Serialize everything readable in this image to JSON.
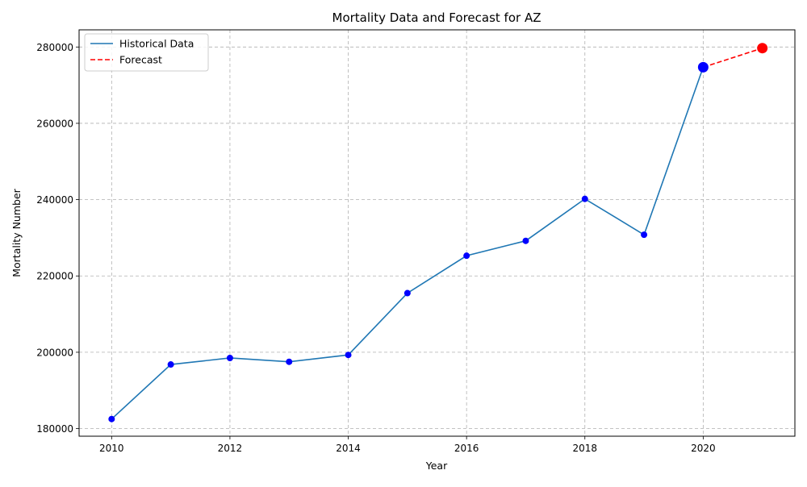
{
  "chart_data": {
    "type": "line",
    "title": "Mortality Data and Forecast for AZ",
    "xlabel": "Year",
    "ylabel": "Mortality Number",
    "xlim": [
      2009.45,
      2021.55
    ],
    "ylim": [
      178000,
      284500
    ],
    "x_ticks": [
      2010,
      2012,
      2014,
      2016,
      2018,
      2020
    ],
    "y_ticks": [
      180000,
      200000,
      220000,
      240000,
      260000,
      280000
    ],
    "grid": true,
    "legend_position": "top-left",
    "series": [
      {
        "name": "Historical Data",
        "style": "solid",
        "color": "#1f77b4",
        "marker_color": "#0000ff",
        "x": [
          2010,
          2011,
          2012,
          2013,
          2014,
          2015,
          2016,
          2017,
          2018,
          2019,
          2020
        ],
        "y": [
          182500,
          196800,
          198500,
          197500,
          199300,
          215500,
          225300,
          229200,
          240200,
          230800,
          274700
        ]
      },
      {
        "name": "Forecast",
        "style": "dashed",
        "color": "#ff0000",
        "marker_color": "#ff0000",
        "x": [
          2020,
          2021
        ],
        "y": [
          274700,
          279700
        ]
      }
    ]
  }
}
